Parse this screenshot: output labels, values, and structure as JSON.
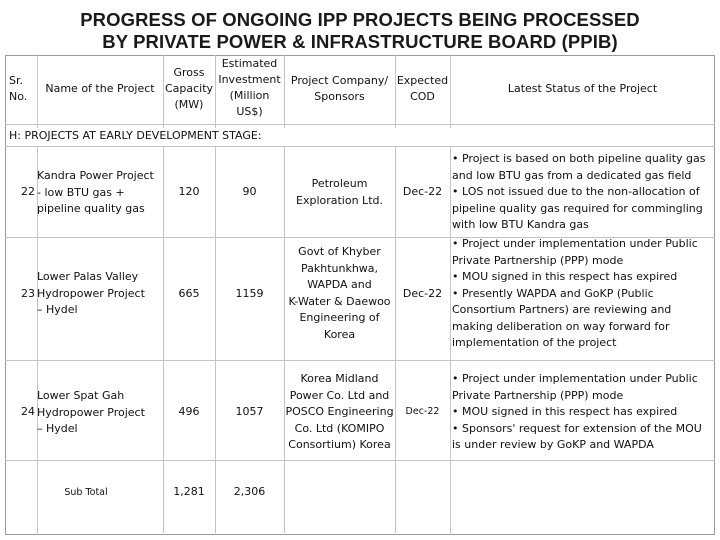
{
  "title": {
    "line1": "PROGRESS OF ONGOING IPP PROJECTS BEING PROCESSED",
    "line2": "BY PRIVATE POWER & INFRASTRUCTURE BOARD (PPIB)"
  },
  "table": {
    "headers": {
      "sr_no": [
        "Sr.",
        "No."
      ],
      "project": "Name of the Project",
      "capacity": [
        "Gross",
        "Capacity",
        "(MW)"
      ],
      "investment": [
        "Estimated",
        "Investment",
        "(Million",
        "US$)"
      ],
      "company": [
        "Project Company/",
        "Sponsors"
      ],
      "cod": [
        "Expected",
        "COD"
      ],
      "status": "Latest Status of the Project"
    },
    "section": "H: PROJECTS AT EARLY DEVELOPMENT STAGE:",
    "rows": [
      {
        "sr": "22",
        "name": [
          "Kandra Power Project",
          "- low BTU gas +",
          "pipeline quality gas"
        ],
        "capacity": "120",
        "investment": "90",
        "company": [
          "Petroleum",
          "Exploration Ltd."
        ],
        "cod": "Dec-22",
        "status": [
          "• Project is based on both pipeline quality gas",
          "and low BTU gas from a dedicated gas field",
          "• LOS not issued due to the non-allocation of",
          "pipeline quality gas required for commingling",
          "with low BTU Kandra gas"
        ]
      },
      {
        "sr": "23",
        "name": [
          "Lower Palas Valley",
          "Hydropower Project",
          "– Hydel"
        ],
        "capacity": "665",
        "investment": "1159",
        "company": [
          "Govt of Khyber",
          "Pakhtunkhwa,",
          "WAPDA and",
          "K-Water & Daewoo",
          "Engineering of",
          "Korea"
        ],
        "cod": "Dec-22",
        "status": [
          "• Project under implementation under Public",
          "Private Partnership (PPP) mode",
          "• MOU signed in this respect has expired",
          "• Presently WAPDA and GoKP (Public",
          "Consortium Partners) are reviewing and",
          "making deliberation on way forward for",
          "implementation of the project"
        ]
      },
      {
        "sr": "24",
        "name": [
          "Lower Spat Gah",
          "Hydropower Project",
          "– Hydel"
        ],
        "capacity": "496",
        "investment": "1057",
        "company": [
          "Korea Midland",
          "Power Co. Ltd and",
          "POSCO Engineering",
          "Co. Ltd (KOMIPO",
          "Consortium) Korea"
        ],
        "cod": "Dec-22",
        "status": [
          "• Project under implementation under Public",
          "Private Partnership (PPP) mode",
          "• MOU signed in this respect has expired",
          "• Sponsors' request for extension of the MOU",
          "is under review by GoKP and WAPDA"
        ]
      }
    ],
    "subtotal": {
      "label": "Sub Total",
      "capacity": "1,281",
      "investment": "2,306"
    }
  }
}
